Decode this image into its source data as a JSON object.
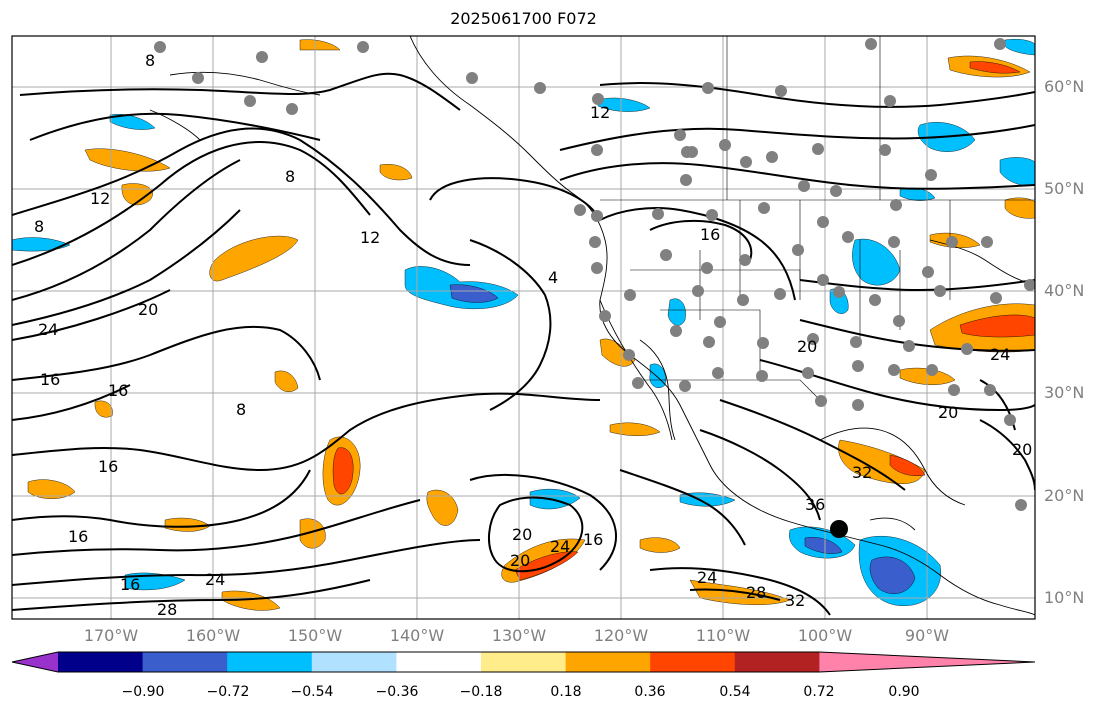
{
  "title": "2025061700 F072",
  "lat_labels": [
    "60°N",
    "50°N",
    "40°N",
    "30°N",
    "20°N",
    "10°N"
  ],
  "lon_labels": [
    "170°W",
    "160°W",
    "150°W",
    "140°W",
    "130°W",
    "120°W",
    "110°W",
    "100°W",
    "90°W"
  ],
  "contour_labels": [
    "8",
    "12",
    "8",
    "20",
    "24",
    "16",
    "16",
    "8",
    "16",
    "16",
    "16",
    "24",
    "28",
    "8",
    "12",
    "12",
    "4",
    "16",
    "20",
    "20",
    "20",
    "24",
    "36",
    "32",
    "20",
    "24",
    "16",
    "24",
    "28",
    "32",
    "20"
  ],
  "colorbar": {
    "ticks": [
      "−0.90",
      "−0.72",
      "−0.54",
      "−0.36",
      "−0.18",
      "0.18",
      "0.36",
      "0.54",
      "0.72",
      "0.90"
    ],
    "colors": [
      "#9932cc",
      "#00008b",
      "#3a5fcd",
      "#00bfff",
      "#b0e2ff",
      "#ffffff",
      "#ffec8b",
      "#ffa500",
      "#ff4500",
      "#b22222",
      "#ff82ab"
    ]
  },
  "shading_colors": {
    "orange": "#ffa500",
    "red": "#ff4500",
    "yellow": "#ffec8b",
    "cyan": "#00bfff",
    "blue": "#3a5fcd",
    "lightblue": "#b0e2ff"
  },
  "marker_colors": {
    "stations": "#808080",
    "highlight": "#000000"
  }
}
